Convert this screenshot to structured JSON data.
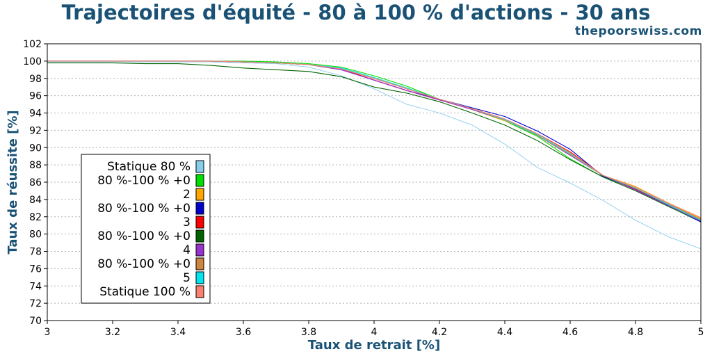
{
  "header": {
    "title": "Trajectoires d'équité - 80 à 100 % d'actions - 30 ans",
    "brand": "thepoorswiss.com"
  },
  "chart_data": {
    "type": "line",
    "title": "Trajectoires d'équité - 80 à 100 % d'actions - 30 ans",
    "xlabel": "Taux de retrait [%]",
    "ylabel": "Taux de réussite [%]",
    "xlim": [
      3,
      5
    ],
    "ylim": [
      70,
      102
    ],
    "x_ticks": [
      "3",
      "3.2",
      "3.4",
      "3.6",
      "3.8",
      "4",
      "4.2",
      "4.4",
      "4.6",
      "4.8",
      "5"
    ],
    "y_ticks": [
      "70",
      "72",
      "74",
      "76",
      "78",
      "80",
      "82",
      "84",
      "86",
      "88",
      "90",
      "92",
      "94",
      "96",
      "98",
      "100",
      "102"
    ],
    "grid": "horizontal-dotted",
    "legend_position": "bottom-left",
    "x": [
      3.0,
      3.1,
      3.2,
      3.3,
      3.4,
      3.5,
      3.6,
      3.7,
      3.8,
      3.9,
      4.0,
      4.1,
      4.2,
      4.3,
      4.4,
      4.5,
      4.6,
      4.7,
      4.8,
      4.9,
      5.0
    ],
    "series": [
      {
        "name": "Statique 80 %",
        "color": "#87ceeb",
        "values": [
          99.9,
          99.9,
          99.9,
          99.9,
          99.9,
          99.9,
          99.8,
          99.7,
          99.3,
          98.3,
          96.8,
          95.0,
          94.0,
          92.6,
          90.4,
          87.7,
          85.9,
          83.9,
          81.6,
          79.7,
          78.3
        ]
      },
      {
        "name": "80 %-100 % +0",
        "color": "#00e000",
        "values": [
          100,
          100,
          100,
          100,
          100,
          100,
          100,
          99.9,
          99.7,
          99.3,
          98.3,
          97.1,
          95.6,
          94.4,
          93.1,
          91.3,
          88.7,
          86.6,
          85.2,
          83.2,
          81.4
        ]
      },
      {
        "name": "2",
        "color": "#ffa500",
        "values": [
          100,
          100,
          100,
          100,
          100,
          100,
          99.9,
          99.8,
          99.6,
          99.1,
          98.0,
          96.9,
          95.6,
          94.4,
          93.1,
          91.6,
          89.5,
          86.8,
          85.5,
          83.6,
          81.8
        ]
      },
      {
        "name": "80 %-100 % +0",
        "color": "#0000cc",
        "values": [
          100,
          100,
          100,
          100,
          100,
          100,
          99.9,
          99.8,
          99.6,
          99.0,
          97.8,
          96.6,
          95.6,
          94.6,
          93.6,
          91.9,
          89.8,
          86.7,
          85.2,
          83.3,
          81.4
        ]
      },
      {
        "name": "3",
        "color": "#ff0000",
        "values": [
          100,
          100,
          100,
          100,
          100,
          100,
          99.9,
          99.8,
          99.6,
          99.1,
          97.8,
          96.6,
          95.5,
          94.5,
          93.3,
          91.6,
          89.5,
          86.8,
          85.2,
          83.4,
          81.6
        ]
      },
      {
        "name": "80 %-100 % +0",
        "color": "#006400",
        "values": [
          99.8,
          99.8,
          99.8,
          99.7,
          99.7,
          99.5,
          99.2,
          99.0,
          98.8,
          98.2,
          97.0,
          96.3,
          95.3,
          94.0,
          92.6,
          90.8,
          88.6,
          86.6,
          85.0,
          83.2,
          81.5
        ]
      },
      {
        "name": "4",
        "color": "#9932cc",
        "values": [
          100,
          100,
          100,
          100,
          100,
          100,
          99.9,
          99.8,
          99.6,
          99.0,
          97.8,
          96.6,
          95.5,
          94.4,
          93.2,
          91.4,
          89.1,
          86.8,
          85.1,
          83.3,
          81.5
        ]
      },
      {
        "name": "80 %-100 % +0",
        "color": "#cd853f",
        "values": [
          100,
          100,
          100,
          100,
          100,
          100,
          99.9,
          99.8,
          99.6,
          99.1,
          98.0,
          96.8,
          95.6,
          94.5,
          93.2,
          91.4,
          89.2,
          86.8,
          85.3,
          83.5,
          81.7
        ]
      },
      {
        "name": "5",
        "color": "#00e5ee",
        "values": [
          100,
          100,
          100,
          100,
          100,
          100,
          99.9,
          99.8,
          99.6,
          99.2,
          98.1,
          96.9,
          95.6,
          94.5,
          93.2,
          91.5,
          89.3,
          86.8,
          85.3,
          83.4,
          81.6
        ]
      },
      {
        "name": "Statique 100 %",
        "color": "#fa8072",
        "values": [
          100,
          100,
          100,
          100,
          100,
          100,
          99.9,
          99.8,
          99.6,
          99.1,
          98.0,
          96.8,
          95.6,
          94.5,
          93.3,
          91.6,
          89.4,
          86.8,
          85.4,
          83.6,
          81.9
        ]
      }
    ]
  }
}
